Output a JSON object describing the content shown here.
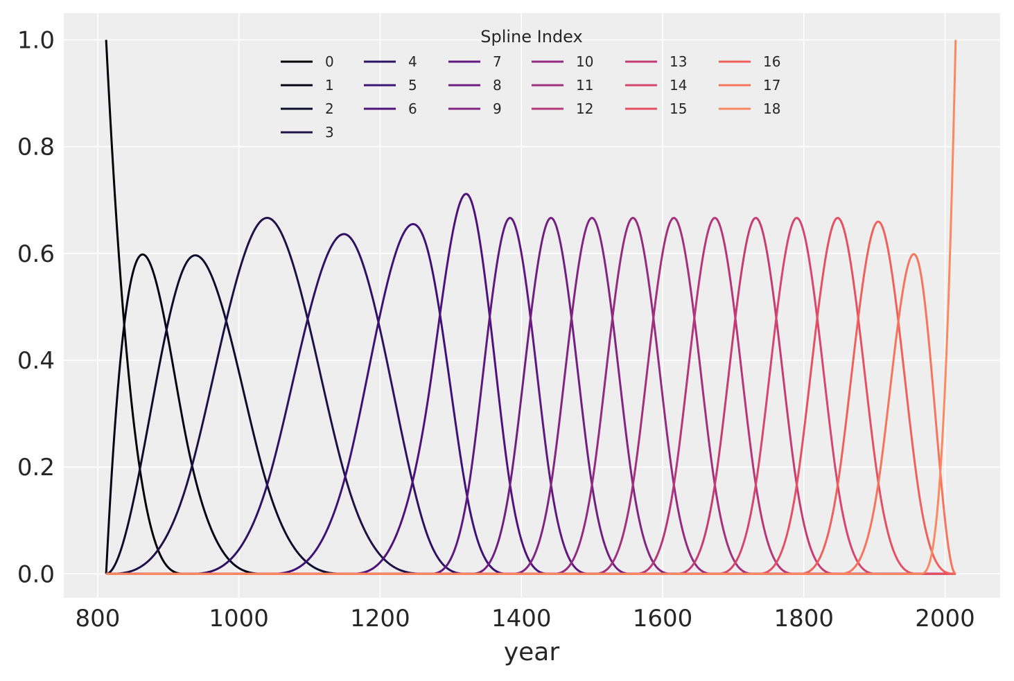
{
  "chart_data": {
    "type": "line",
    "title": "",
    "xlabel": "year",
    "ylabel": "",
    "xlim": [
      752,
      2078
    ],
    "ylim": [
      -0.045,
      1.05
    ],
    "x_ticks": [
      800,
      1000,
      1200,
      1400,
      1600,
      1800,
      2000
    ],
    "y_ticks": [
      0.0,
      0.2,
      0.4,
      0.6,
      0.8,
      1.0
    ],
    "x_tick_labels": [
      "800",
      "1000",
      "1200",
      "1400",
      "1600",
      "1800",
      "2000"
    ],
    "y_tick_labels": [
      "0.0",
      "0.2",
      "0.4",
      "0.6",
      "0.8",
      "1.0"
    ],
    "grid": true,
    "legend": {
      "title": "Spline Index",
      "placement": "top-center",
      "columns": 6
    },
    "x_domain": [
      812,
      2015
    ],
    "knots": [
      812,
      812,
      812,
      812,
      926,
      1040,
      1154,
      1268,
      1326,
      1384,
      1442,
      1500,
      1558,
      1616,
      1674,
      1732,
      1790,
      1848,
      1906,
      1964,
      2015,
      2015,
      2015,
      2015
    ],
    "series": [
      {
        "name": "0",
        "color": "#000004"
      },
      {
        "name": "1",
        "color": "#050416"
      },
      {
        "name": "2",
        "color": "#0f0c2c"
      },
      {
        "name": "3",
        "color": "#1e1146"
      },
      {
        "name": "4",
        "color": "#2f1163"
      },
      {
        "name": "5",
        "color": "#3e1275"
      },
      {
        "name": "6",
        "color": "#4f127b"
      },
      {
        "name": "7",
        "color": "#5f187f"
      },
      {
        "name": "8",
        "color": "#701f81"
      },
      {
        "name": "9",
        "color": "#812581"
      },
      {
        "name": "10",
        "color": "#932b80"
      },
      {
        "name": "11",
        "color": "#a3307e"
      },
      {
        "name": "12",
        "color": "#b5367a"
      },
      {
        "name": "13",
        "color": "#c53c74"
      },
      {
        "name": "14",
        "color": "#d6456c"
      },
      {
        "name": "15",
        "color": "#e45063"
      },
      {
        "name": "16",
        "color": "#ef605c"
      },
      {
        "name": "17",
        "color": "#f7745c"
      },
      {
        "name": "18",
        "color": "#fb8861"
      }
    ]
  }
}
